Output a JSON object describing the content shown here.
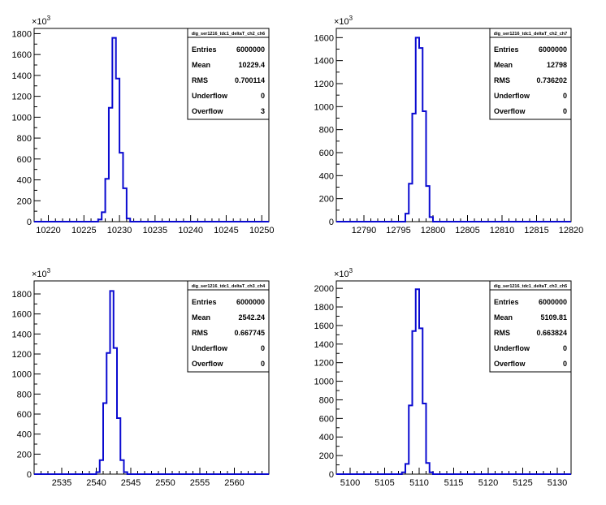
{
  "chart_data": [
    {
      "type": "histogram",
      "stats_title": "dig_ser1216_tdc1_deltaT_ch2_ch6",
      "stats": [
        {
          "label": "Entries",
          "value": "6000000"
        },
        {
          "label": "Mean",
          "value": "10229.4"
        },
        {
          "label": "RMS",
          "value": "0.700114"
        },
        {
          "label": "Underflow",
          "value": "0"
        },
        {
          "label": "Overflow",
          "value": "3"
        }
      ],
      "y_multiplier": "10",
      "y_exponent": "3",
      "xlim": [
        10218,
        10251
      ],
      "ylim": [
        0,
        1850
      ],
      "x_ticks": [
        10220,
        10225,
        10230,
        10235,
        10240,
        10245,
        10250
      ],
      "x_tick_labels": [
        "10220",
        "10225",
        "10230",
        "10235",
        "10240",
        "10245",
        "10250"
      ],
      "y_ticks": [
        0,
        200,
        400,
        600,
        800,
        1000,
        1200,
        1400,
        1600,
        1800
      ],
      "y_tick_labels": [
        "0",
        "200",
        "400",
        "600",
        "800",
        "1000",
        "1200",
        "1400",
        "1600",
        "1800"
      ],
      "bins": [
        {
          "x0": 10227.0,
          "x1": 10227.5,
          "y": 20
        },
        {
          "x0": 10227.5,
          "x1": 10228.0,
          "y": 90
        },
        {
          "x0": 10228.0,
          "x1": 10228.5,
          "y": 410
        },
        {
          "x0": 10228.5,
          "x1": 10229.0,
          "y": 1090
        },
        {
          "x0": 10229.0,
          "x1": 10229.5,
          "y": 1760
        },
        {
          "x0": 10229.5,
          "x1": 10230.0,
          "y": 1370
        },
        {
          "x0": 10230.0,
          "x1": 10230.5,
          "y": 660
        },
        {
          "x0": 10230.5,
          "x1": 10231.0,
          "y": 320
        },
        {
          "x0": 10231.0,
          "x1": 10231.5,
          "y": 30
        }
      ]
    },
    {
      "type": "histogram",
      "stats_title": "dig_ser1216_tdc1_deltaT_ch2_ch7",
      "stats": [
        {
          "label": "Entries",
          "value": "6000000"
        },
        {
          "label": "Mean",
          "value": "12798"
        },
        {
          "label": "RMS",
          "value": "0.736202"
        },
        {
          "label": "Underflow",
          "value": "0"
        },
        {
          "label": "Overflow",
          "value": "0"
        }
      ],
      "y_multiplier": "10",
      "y_exponent": "3",
      "xlim": [
        12786,
        12820
      ],
      "ylim": [
        0,
        1680
      ],
      "x_ticks": [
        12790,
        12795,
        12800,
        12805,
        12810,
        12815,
        12820
      ],
      "x_tick_labels": [
        "12790",
        "12795",
        "12800",
        "12805",
        "12810",
        "12815",
        "12820"
      ],
      "y_ticks": [
        0,
        200,
        400,
        600,
        800,
        1000,
        1200,
        1400,
        1600
      ],
      "y_tick_labels": [
        "0",
        "200",
        "400",
        "600",
        "800",
        "1000",
        "1200",
        "1400",
        "1600"
      ],
      "bins": [
        {
          "x0": 12796.0,
          "x1": 12796.5,
          "y": 70
        },
        {
          "x0": 12796.5,
          "x1": 12797.0,
          "y": 330
        },
        {
          "x0": 12797.0,
          "x1": 12797.5,
          "y": 940
        },
        {
          "x0": 12797.5,
          "x1": 12798.0,
          "y": 1600
        },
        {
          "x0": 12798.0,
          "x1": 12798.5,
          "y": 1510
        },
        {
          "x0": 12798.5,
          "x1": 12799.0,
          "y": 960
        },
        {
          "x0": 12799.0,
          "x1": 12799.5,
          "y": 310
        },
        {
          "x0": 12799.5,
          "x1": 12800.0,
          "y": 40
        }
      ]
    },
    {
      "type": "histogram",
      "stats_title": "dig_ser1216_tdc1_deltaT_ch3_ch4",
      "stats": [
        {
          "label": "Entries",
          "value": "6000000"
        },
        {
          "label": "Mean",
          "value": "2542.24"
        },
        {
          "label": "RMS",
          "value": "0.667745"
        },
        {
          "label": "Underflow",
          "value": "0"
        },
        {
          "label": "Overflow",
          "value": "0"
        }
      ],
      "y_multiplier": "10",
      "y_exponent": "3",
      "xlim": [
        2531,
        2565
      ],
      "ylim": [
        0,
        1930
      ],
      "x_ticks": [
        2535,
        2540,
        2545,
        2550,
        2555,
        2560
      ],
      "x_tick_labels": [
        "2535",
        "2540",
        "2545",
        "2550",
        "2555",
        "2560"
      ],
      "y_ticks": [
        0,
        200,
        400,
        600,
        800,
        1000,
        1200,
        1400,
        1600,
        1800
      ],
      "y_tick_labels": [
        "0",
        "200",
        "400",
        "600",
        "800",
        "1000",
        "1200",
        "1400",
        "1600",
        "1800"
      ],
      "bins": [
        {
          "x0": 2540.0,
          "x1": 2540.5,
          "y": 20
        },
        {
          "x0": 2540.5,
          "x1": 2541.0,
          "y": 140
        },
        {
          "x0": 2541.0,
          "x1": 2541.5,
          "y": 710
        },
        {
          "x0": 2541.5,
          "x1": 2542.0,
          "y": 1210
        },
        {
          "x0": 2542.0,
          "x1": 2542.5,
          "y": 1830
        },
        {
          "x0": 2542.5,
          "x1": 2543.0,
          "y": 1260
        },
        {
          "x0": 2543.0,
          "x1": 2543.5,
          "y": 560
        },
        {
          "x0": 2543.5,
          "x1": 2544.0,
          "y": 140
        },
        {
          "x0": 2544.0,
          "x1": 2544.5,
          "y": 20
        }
      ]
    },
    {
      "type": "histogram",
      "stats_title": "dig_ser1216_tdc1_deltaT_ch3_ch5",
      "stats": [
        {
          "label": "Entries",
          "value": "6000000"
        },
        {
          "label": "Mean",
          "value": "5109.81"
        },
        {
          "label": "RMS",
          "value": "0.663824"
        },
        {
          "label": "Underflow",
          "value": "0"
        },
        {
          "label": "Overflow",
          "value": "0"
        }
      ],
      "y_multiplier": "10",
      "y_exponent": "3",
      "xlim": [
        5098,
        5132
      ],
      "ylim": [
        0,
        2080
      ],
      "x_ticks": [
        5100,
        5105,
        5110,
        5115,
        5120,
        5125,
        5130
      ],
      "x_tick_labels": [
        "5100",
        "5105",
        "5110",
        "5115",
        "5120",
        "5125",
        "5130"
      ],
      "y_ticks": [
        0,
        200,
        400,
        600,
        800,
        1000,
        1200,
        1400,
        1600,
        1800,
        2000
      ],
      "y_tick_labels": [
        "0",
        "200",
        "400",
        "600",
        "800",
        "1000",
        "1200",
        "1400",
        "1600",
        "1800",
        "2000"
      ],
      "bins": [
        {
          "x0": 5107.5,
          "x1": 5108.0,
          "y": 20
        },
        {
          "x0": 5108.0,
          "x1": 5108.5,
          "y": 110
        },
        {
          "x0": 5108.5,
          "x1": 5109.0,
          "y": 740
        },
        {
          "x0": 5109.0,
          "x1": 5109.5,
          "y": 1540
        },
        {
          "x0": 5109.5,
          "x1": 5110.0,
          "y": 1990
        },
        {
          "x0": 5110.0,
          "x1": 5110.5,
          "y": 1570
        },
        {
          "x0": 5110.5,
          "x1": 5111.0,
          "y": 760
        },
        {
          "x0": 5111.0,
          "x1": 5111.5,
          "y": 120
        },
        {
          "x0": 5111.5,
          "x1": 5112.0,
          "y": 20
        }
      ]
    }
  ]
}
